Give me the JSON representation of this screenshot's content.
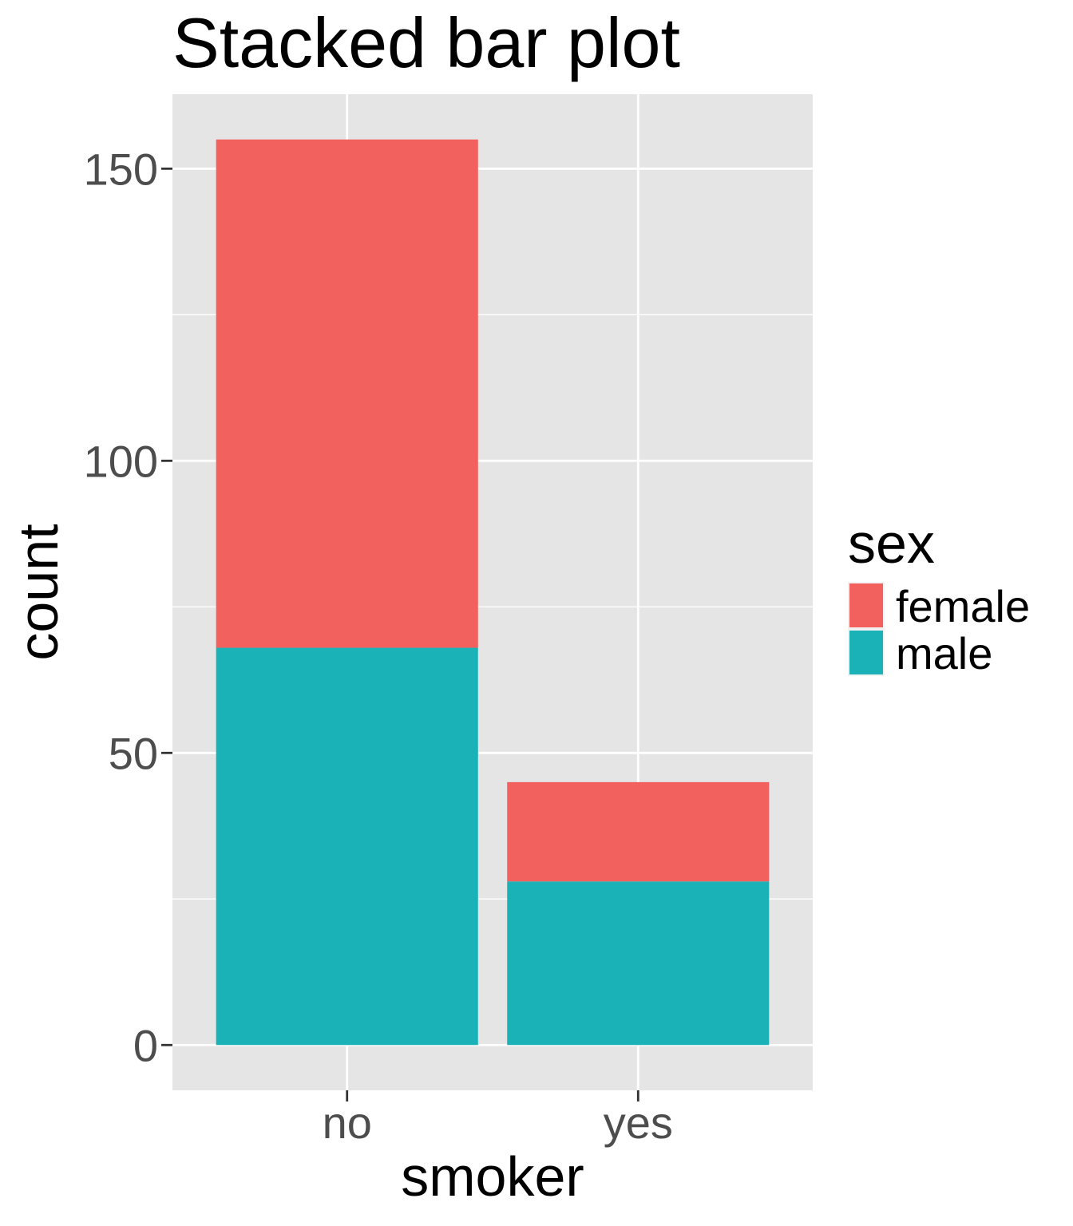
{
  "chart_data": {
    "type": "bar",
    "stacked": true,
    "title": "Stacked bar plot",
    "xlabel": "smoker",
    "ylabel": "count",
    "categories": [
      "no",
      "yes"
    ],
    "series": [
      {
        "name": "male",
        "values": [
          68,
          28
        ],
        "color": "#1AB2B7"
      },
      {
        "name": "female",
        "values": [
          87,
          17
        ],
        "color": "#F2615D"
      }
    ],
    "ylim": [
      -7.75,
      162.75
    ],
    "yticks": [
      0,
      50,
      100,
      150
    ],
    "yticks_minor": [
      25,
      75,
      125
    ],
    "grid": true,
    "panel_background": "#E5E5E5",
    "legend": {
      "title": "sex",
      "position": "right",
      "entries": [
        "female",
        "male"
      ]
    }
  }
}
